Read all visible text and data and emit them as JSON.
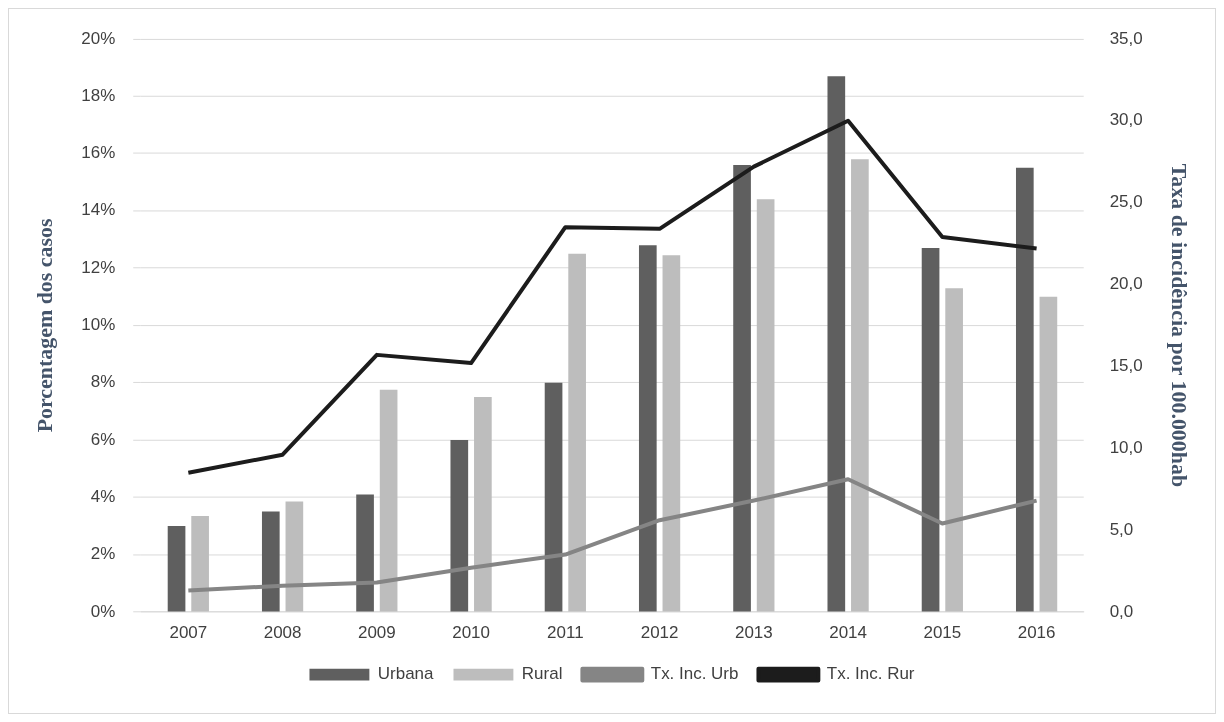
{
  "chart_data": {
    "type": "bar",
    "categories": [
      "2007",
      "2008",
      "2009",
      "2010",
      "2011",
      "2012",
      "2013",
      "2014",
      "2015",
      "2016"
    ],
    "ylabel": "Porcentagem dos casos",
    "y2label": "Taxa de incidência por 100.000hab",
    "series": [
      {
        "name": "Urbana",
        "color": "#5f5f5f",
        "values": [
          3.0,
          3.5,
          4.1,
          6.0,
          8.0,
          12.8,
          15.6,
          18.7,
          12.7,
          15.5
        ]
      },
      {
        "name": "Rural",
        "color": "#bdbdbd",
        "values": [
          3.35,
          3.85,
          7.75,
          7.5,
          12.5,
          12.45,
          14.4,
          15.8,
          11.3,
          11.0
        ]
      },
      {
        "name": "Tx. Inc. Urb",
        "type": "line",
        "axis": "y2",
        "color": "#858585",
        "values": [
          1.3,
          1.6,
          1.8,
          2.7,
          3.5,
          5.6,
          6.8,
          8.1,
          5.4,
          6.8
        ]
      },
      {
        "name": "Tx. Inc. Rur",
        "type": "line",
        "axis": "y2",
        "color": "#1c1c1c",
        "values": [
          8.5,
          9.6,
          15.7,
          15.2,
          23.5,
          23.4,
          27.2,
          30.0,
          22.9,
          22.2
        ]
      }
    ],
    "ylim": [
      0,
      20
    ],
    "yticks": [
      {
        "value": 0,
        "label": "0%"
      },
      {
        "value": 2,
        "label": "2%"
      },
      {
        "value": 4,
        "label": "4%"
      },
      {
        "value": 6,
        "label": "6%"
      },
      {
        "value": 8,
        "label": "8%"
      },
      {
        "value": 10,
        "label": "10%"
      },
      {
        "value": 12,
        "label": "12%"
      },
      {
        "value": 14,
        "label": "14%"
      },
      {
        "value": 16,
        "label": "16%"
      },
      {
        "value": 18,
        "label": "18%"
      },
      {
        "value": 20,
        "label": "20%"
      }
    ],
    "y2lim": [
      0,
      35
    ],
    "y2ticks": [
      {
        "value": 0,
        "label": "0,0"
      },
      {
        "value": 5,
        "label": "5,0"
      },
      {
        "value": 10,
        "label": "10,0"
      },
      {
        "value": 15,
        "label": "15,0"
      },
      {
        "value": 20,
        "label": "20,0"
      },
      {
        "value": 25,
        "label": "25,0"
      },
      {
        "value": 30,
        "label": "30,0"
      },
      {
        "value": 35,
        "label": "35,0"
      }
    ],
    "grid": "y",
    "legend": "bottom",
    "marker": "none",
    "line_style": "solid"
  }
}
